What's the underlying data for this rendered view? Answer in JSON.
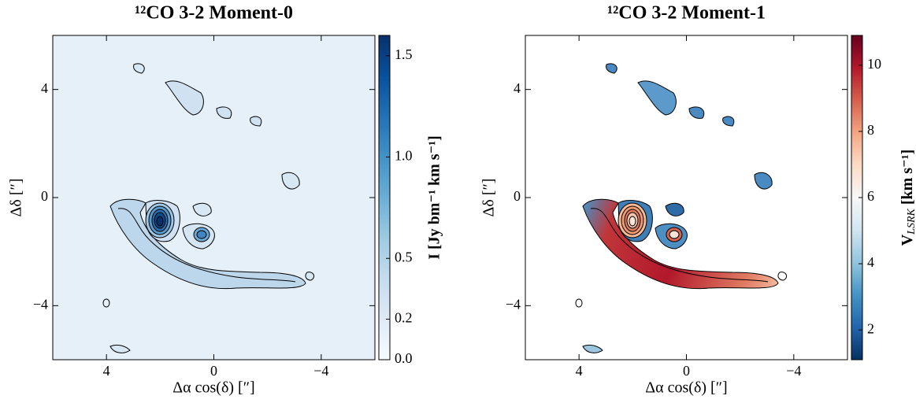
{
  "chart_data": [
    {
      "type": "image",
      "title": "¹²CO 3-2 Moment-0",
      "xlabel": "Δα cos(δ) [″]",
      "ylabel": "Δδ [″]",
      "xlim": [
        6,
        -6
      ],
      "ylim": [
        -6,
        6
      ],
      "xticks": [
        4,
        0,
        {
          "value": -4,
          "label": "−4"
        }
      ],
      "yticks": [
        4,
        0,
        {
          "value": -4,
          "label": "−4"
        }
      ],
      "colormap": "Blues",
      "clim": [
        0,
        1.6
      ],
      "cticks": [
        {
          "value": 0,
          "label": "0.0"
        },
        0.2,
        0.5,
        {
          "value": 1,
          "label": "1.0"
        },
        1.5
      ],
      "clabel": "I [Jy bm⁻¹ km s⁻¹]"
    },
    {
      "type": "image",
      "title": "¹²CO 3-2 Moment-1",
      "xlabel": "Δα cos(δ) [″]",
      "ylabel": "Δδ [″]",
      "xlim": [
        6,
        -6
      ],
      "ylim": [
        -6,
        6
      ],
      "xticks": [
        4,
        0,
        {
          "value": -4,
          "label": "−4"
        }
      ],
      "yticks": [
        4,
        0,
        {
          "value": -4,
          "label": "−4"
        }
      ],
      "colormap": "RdBu_r",
      "clim": [
        1.1,
        10.9
      ],
      "cticks": [
        2,
        4,
        6,
        8,
        10
      ],
      "clabel": {
        "main": "V",
        "sub": "LSRK",
        "unit": " [km s⁻¹]"
      }
    }
  ]
}
